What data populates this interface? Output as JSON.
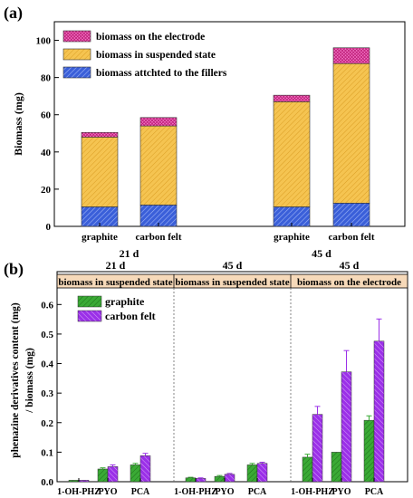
{
  "chart_data": [
    {
      "panel": "(a)",
      "type": "bar",
      "stacked": true,
      "ylabel": "Biomass (mg)",
      "ylim": [
        0,
        110
      ],
      "yticks": [
        0,
        20,
        40,
        60,
        80,
        100
      ],
      "groups": [
        {
          "label": "21 d",
          "categories": [
            "graphite",
            "carbon felt"
          ]
        },
        {
          "label": "45 d",
          "categories": [
            "graphite",
            "carbon felt"
          ]
        }
      ],
      "series": [
        {
          "name": "biomass attchted to the fillers",
          "color": "#3a5fd9",
          "values": [
            10.5,
            11.5,
            10.5,
            12.5
          ]
        },
        {
          "name": "biomass in suspended state",
          "color": "#f5c451",
          "values": [
            37.5,
            42.5,
            56.5,
            75.0
          ]
        },
        {
          "name": "biomass on the electrode",
          "color": "#f06fc0",
          "values": [
            2.5,
            4.5,
            3.5,
            8.5
          ]
        }
      ],
      "legend_position": "top-left"
    },
    {
      "panel": "(b)",
      "type": "bar",
      "ylabel": "phenazine derivatives content (mg) / biomass (mg)",
      "ylim": [
        0,
        0.65
      ],
      "yticks": [
        "0.0",
        "0.1",
        "0.2",
        "0.3",
        "0.4",
        "0.5",
        "0.6"
      ],
      "sections": [
        {
          "top_label": "21 d",
          "band_label": "biomass in suspended state",
          "categories": [
            "1-OH-PHZ",
            "PYO",
            "PCA"
          ]
        },
        {
          "top_label": "45 d",
          "band_label": "biomass in suspended state",
          "categories": [
            "1-OH-PHZ",
            "PYO",
            "PCA"
          ]
        },
        {
          "top_label": "45 d",
          "band_label": "biomass on the electrode",
          "categories": [
            "1-OH-PHZ",
            "PYO",
            "PCA"
          ]
        }
      ],
      "series": [
        {
          "name": "graphite",
          "color": "#3aaa35",
          "values": [
            0.005,
            0.043,
            0.057,
            0.013,
            0.018,
            0.057,
            0.083,
            0.1,
            0.208
          ],
          "errors": [
            0,
            0.004,
            0.005,
            0.002,
            0.003,
            0.005,
            0.01,
            0,
            0.015
          ]
        },
        {
          "name": "carbon felt",
          "color": "#9b30e8",
          "values": [
            0.005,
            0.051,
            0.088,
            0.011,
            0.025,
            0.062,
            0.228,
            0.372,
            0.476
          ],
          "errors": [
            0,
            0.006,
            0.008,
            0.002,
            0.003,
            0.004,
            0.027,
            0.072,
            0.075
          ]
        }
      ],
      "legend_position": "top-left"
    }
  ]
}
